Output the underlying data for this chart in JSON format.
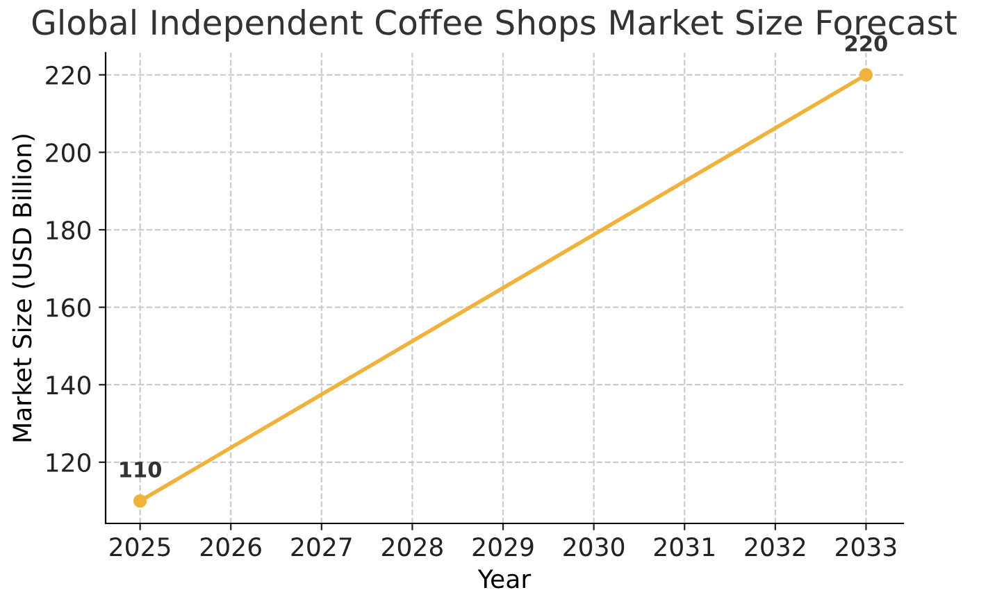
{
  "chart_data": {
    "type": "line",
    "title": "Global Independent Coffee Shops Market Size Forecast",
    "xlabel": "Year",
    "ylabel": "Market Size (USD Billion)",
    "x": [
      2025,
      2033
    ],
    "series": [
      {
        "color": "#efb23c",
        "values": [
          110,
          220
        ]
      }
    ],
    "xlim": [
      2024.62,
      2033.41
    ],
    "ylim": [
      104.2,
      225.7
    ],
    "xticks": [
      2025,
      2026,
      2027,
      2028,
      2029,
      2030,
      2031,
      2032,
      2033
    ],
    "yticks": [
      120,
      140,
      160,
      180,
      200,
      220
    ],
    "grid": true,
    "marker": "circle",
    "line_style": "solid",
    "data_labels": true
  }
}
